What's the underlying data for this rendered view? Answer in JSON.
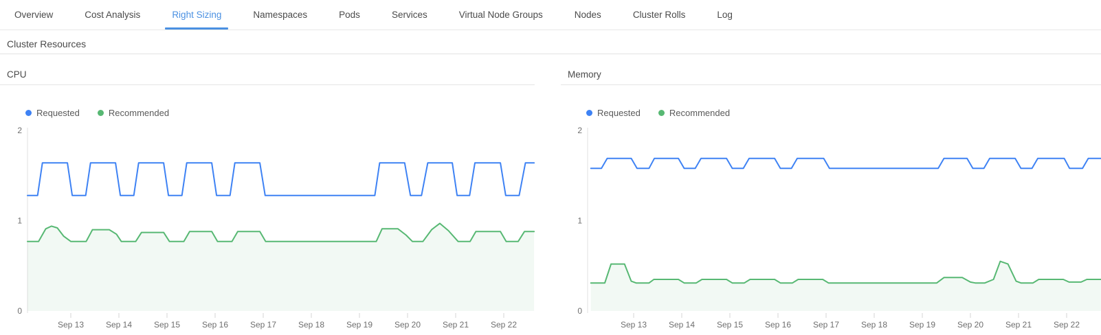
{
  "colors": {
    "accent_blue": "#4a90e2",
    "series_requested": "#3e82f4",
    "series_recommended": "#57b873",
    "recommended_fill": "rgba(87,184,115,0.08)",
    "axis_line": "#e0e0e0",
    "tick_line": "#d4d4d4",
    "divider": "#e5e5e5"
  },
  "tabs": {
    "items": [
      {
        "label": "Overview",
        "active": false
      },
      {
        "label": "Cost Analysis",
        "active": false
      },
      {
        "label": "Right Sizing",
        "active": true
      },
      {
        "label": "Namespaces",
        "active": false
      },
      {
        "label": "Pods",
        "active": false
      },
      {
        "label": "Services",
        "active": false
      },
      {
        "label": "Virtual Node Groups",
        "active": false
      },
      {
        "label": "Nodes",
        "active": false
      },
      {
        "label": "Cluster Rolls",
        "active": false
      },
      {
        "label": "Log",
        "active": false
      }
    ]
  },
  "section": {
    "title": "Cluster Resources"
  },
  "panels": [
    {
      "title": "CPU"
    },
    {
      "title": "Memory"
    }
  ],
  "chart_data": [
    {
      "type": "line",
      "title": "CPU",
      "ylim": [
        0,
        2
      ],
      "y_ticks": [
        0,
        1,
        2
      ],
      "x_ticks": [
        13,
        14,
        15,
        16,
        17,
        18,
        19,
        20,
        21,
        22
      ],
      "x_tick_labels": [
        "Sep 13",
        "Sep 14",
        "Sep 15",
        "Sep 16",
        "Sep 17",
        "Sep 18",
        "Sep 19",
        "Sep 20",
        "Sep 21",
        "Sep 22"
      ],
      "x_range": [
        12.1,
        22.63
      ],
      "grid": false,
      "legend_position": "top-left",
      "series": [
        {
          "name": "Requested",
          "color": "#3e82f4",
          "fill": false,
          "points": [
            [
              12.1,
              1.28
            ],
            [
              12.31,
              1.28
            ],
            [
              12.41,
              1.64
            ],
            [
              12.93,
              1.64
            ],
            [
              13.03,
              1.28
            ],
            [
              13.31,
              1.28
            ],
            [
              13.41,
              1.64
            ],
            [
              13.93,
              1.64
            ],
            [
              14.03,
              1.28
            ],
            [
              14.31,
              1.28
            ],
            [
              14.41,
              1.64
            ],
            [
              14.93,
              1.64
            ],
            [
              15.03,
              1.28
            ],
            [
              15.31,
              1.28
            ],
            [
              15.41,
              1.64
            ],
            [
              15.93,
              1.64
            ],
            [
              16.03,
              1.28
            ],
            [
              16.31,
              1.28
            ],
            [
              16.41,
              1.64
            ],
            [
              16.93,
              1.64
            ],
            [
              17.04,
              1.28
            ],
            [
              19.32,
              1.28
            ],
            [
              19.42,
              1.64
            ],
            [
              19.94,
              1.64
            ],
            [
              20.06,
              1.28
            ],
            [
              20.29,
              1.28
            ],
            [
              20.42,
              1.64
            ],
            [
              20.93,
              1.64
            ],
            [
              21.03,
              1.28
            ],
            [
              21.29,
              1.28
            ],
            [
              21.4,
              1.64
            ],
            [
              21.93,
              1.64
            ],
            [
              22.04,
              1.28
            ],
            [
              22.32,
              1.28
            ],
            [
              22.45,
              1.64
            ],
            [
              22.63,
              1.64
            ]
          ]
        },
        {
          "name": "Recommended",
          "color": "#57b873",
          "fill": true,
          "points": [
            [
              12.1,
              0.77
            ],
            [
              12.33,
              0.77
            ],
            [
              12.48,
              0.91
            ],
            [
              12.6,
              0.94
            ],
            [
              12.72,
              0.92
            ],
            [
              12.85,
              0.83
            ],
            [
              13.0,
              0.77
            ],
            [
              13.32,
              0.77
            ],
            [
              13.45,
              0.9
            ],
            [
              13.8,
              0.9
            ],
            [
              13.95,
              0.85
            ],
            [
              14.05,
              0.77
            ],
            [
              14.35,
              0.77
            ],
            [
              14.47,
              0.87
            ],
            [
              14.93,
              0.87
            ],
            [
              15.05,
              0.77
            ],
            [
              15.35,
              0.77
            ],
            [
              15.47,
              0.88
            ],
            [
              15.93,
              0.88
            ],
            [
              16.05,
              0.77
            ],
            [
              16.35,
              0.77
            ],
            [
              16.47,
              0.88
            ],
            [
              16.93,
              0.88
            ],
            [
              17.05,
              0.77
            ],
            [
              19.35,
              0.77
            ],
            [
              19.47,
              0.91
            ],
            [
              19.8,
              0.91
            ],
            [
              19.97,
              0.84
            ],
            [
              20.1,
              0.77
            ],
            [
              20.32,
              0.77
            ],
            [
              20.5,
              0.9
            ],
            [
              20.67,
              0.97
            ],
            [
              20.85,
              0.89
            ],
            [
              21.05,
              0.77
            ],
            [
              21.3,
              0.77
            ],
            [
              21.42,
              0.88
            ],
            [
              21.93,
              0.88
            ],
            [
              22.05,
              0.77
            ],
            [
              22.3,
              0.77
            ],
            [
              22.43,
              0.88
            ],
            [
              22.63,
              0.88
            ]
          ]
        }
      ]
    },
    {
      "type": "line",
      "title": "Memory",
      "ylim": [
        0,
        2
      ],
      "y_ticks": [
        0,
        1,
        2
      ],
      "x_ticks": [
        13,
        14,
        15,
        16,
        17,
        18,
        19,
        20,
        21,
        22
      ],
      "x_tick_labels": [
        "Sep 13",
        "Sep 14",
        "Sep 15",
        "Sep 16",
        "Sep 17",
        "Sep 18",
        "Sep 19",
        "Sep 20",
        "Sep 21",
        "Sep 22"
      ],
      "x_range": [
        12.11,
        22.71
      ],
      "grid": false,
      "legend_position": "top-left",
      "series": [
        {
          "name": "Requested",
          "color": "#3e82f4",
          "fill": false,
          "points": [
            [
              12.11,
              1.58
            ],
            [
              12.33,
              1.58
            ],
            [
              12.45,
              1.69
            ],
            [
              12.95,
              1.69
            ],
            [
              13.07,
              1.58
            ],
            [
              13.32,
              1.58
            ],
            [
              13.43,
              1.69
            ],
            [
              13.93,
              1.69
            ],
            [
              14.05,
              1.58
            ],
            [
              14.28,
              1.58
            ],
            [
              14.4,
              1.69
            ],
            [
              14.93,
              1.69
            ],
            [
              15.05,
              1.58
            ],
            [
              15.28,
              1.58
            ],
            [
              15.4,
              1.69
            ],
            [
              15.93,
              1.69
            ],
            [
              16.05,
              1.58
            ],
            [
              16.28,
              1.58
            ],
            [
              16.4,
              1.69
            ],
            [
              16.95,
              1.69
            ],
            [
              17.07,
              1.58
            ],
            [
              19.33,
              1.58
            ],
            [
              19.45,
              1.69
            ],
            [
              19.93,
              1.69
            ],
            [
              20.05,
              1.58
            ],
            [
              20.28,
              1.58
            ],
            [
              20.4,
              1.69
            ],
            [
              20.93,
              1.69
            ],
            [
              21.05,
              1.58
            ],
            [
              21.28,
              1.58
            ],
            [
              21.4,
              1.69
            ],
            [
              21.95,
              1.69
            ],
            [
              22.06,
              1.58
            ],
            [
              22.33,
              1.58
            ],
            [
              22.45,
              1.69
            ],
            [
              22.71,
              1.69
            ]
          ]
        },
        {
          "name": "Recommended",
          "color": "#57b873",
          "fill": true,
          "points": [
            [
              12.11,
              0.31
            ],
            [
              12.4,
              0.31
            ],
            [
              12.53,
              0.52
            ],
            [
              12.81,
              0.52
            ],
            [
              12.95,
              0.33
            ],
            [
              13.05,
              0.31
            ],
            [
              13.32,
              0.31
            ],
            [
              13.42,
              0.35
            ],
            [
              13.93,
              0.35
            ],
            [
              14.05,
              0.31
            ],
            [
              14.3,
              0.31
            ],
            [
              14.42,
              0.35
            ],
            [
              14.93,
              0.35
            ],
            [
              15.05,
              0.31
            ],
            [
              15.3,
              0.31
            ],
            [
              15.42,
              0.35
            ],
            [
              15.93,
              0.35
            ],
            [
              16.05,
              0.31
            ],
            [
              16.3,
              0.31
            ],
            [
              16.42,
              0.35
            ],
            [
              16.93,
              0.35
            ],
            [
              17.05,
              0.31
            ],
            [
              19.3,
              0.31
            ],
            [
              19.45,
              0.37
            ],
            [
              19.83,
              0.37
            ],
            [
              20.0,
              0.32
            ],
            [
              20.1,
              0.31
            ],
            [
              20.3,
              0.31
            ],
            [
              20.48,
              0.35
            ],
            [
              20.62,
              0.55
            ],
            [
              20.78,
              0.52
            ],
            [
              20.95,
              0.33
            ],
            [
              21.05,
              0.31
            ],
            [
              21.3,
              0.31
            ],
            [
              21.42,
              0.35
            ],
            [
              21.93,
              0.35
            ],
            [
              22.05,
              0.32
            ],
            [
              22.3,
              0.32
            ],
            [
              22.42,
              0.35
            ],
            [
              22.71,
              0.35
            ]
          ]
        }
      ]
    }
  ]
}
